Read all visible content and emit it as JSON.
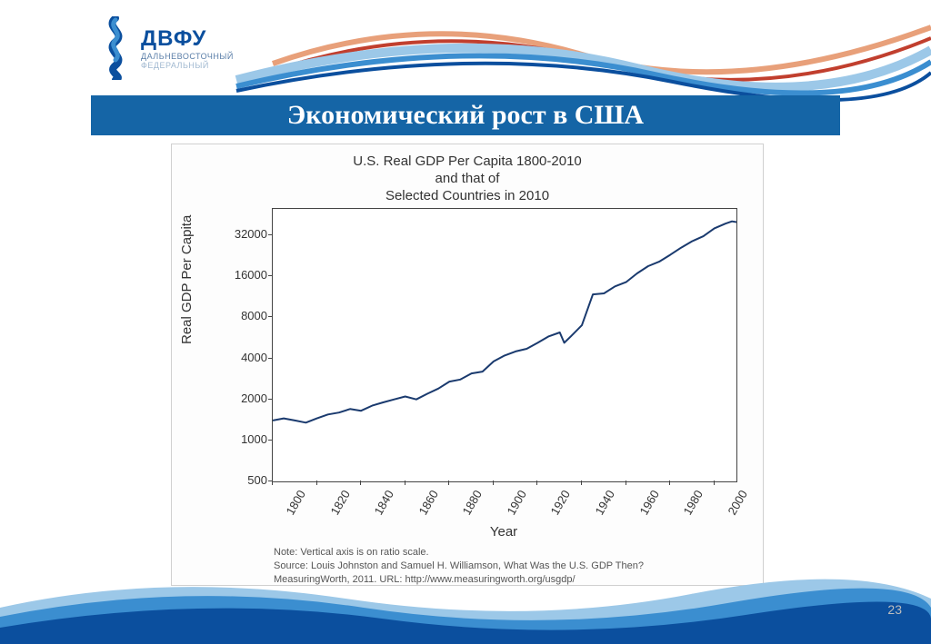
{
  "logo": {
    "main": "ДВФУ",
    "sub1": "Дальневосточный",
    "sub2": "Федеральный"
  },
  "title": "Экономический рост в США",
  "page_number": "23",
  "chart": {
    "type": "line",
    "title_line1": "U.S. Real GDP Per Capita 1800-2010",
    "title_line2": "and that of",
    "title_line3": "Selected Countries in 2010",
    "ylabel": "Real GDP Per Capita",
    "xlabel": "Year",
    "yscale": "log",
    "ylim": [
      500,
      50000
    ],
    "yticks": [
      500,
      1000,
      2000,
      4000,
      8000,
      16000,
      32000
    ],
    "xlim": [
      1800,
      2010
    ],
    "xticks": [
      1800,
      1820,
      1840,
      1860,
      1880,
      1900,
      1920,
      1940,
      1960,
      1980,
      2000
    ],
    "line_color": "#1a3a6e",
    "line_width": 2,
    "background_color": "#ffffff",
    "border_color": "#444444",
    "tick_fontsize": 13,
    "label_fontsize": 15,
    "title_fontsize": 15,
    "data": {
      "years": [
        1800,
        1805,
        1810,
        1815,
        1820,
        1825,
        1830,
        1835,
        1840,
        1845,
        1850,
        1855,
        1860,
        1865,
        1870,
        1875,
        1880,
        1885,
        1890,
        1895,
        1900,
        1905,
        1910,
        1915,
        1920,
        1925,
        1930,
        1932,
        1935,
        1940,
        1945,
        1950,
        1955,
        1960,
        1965,
        1970,
        1975,
        1980,
        1985,
        1990,
        1995,
        2000,
        2005,
        2008,
        2010
      ],
      "values": [
        1400,
        1450,
        1400,
        1350,
        1450,
        1550,
        1600,
        1700,
        1650,
        1800,
        1900,
        2000,
        2100,
        2000,
        2200,
        2400,
        2700,
        2800,
        3100,
        3200,
        3800,
        4200,
        4500,
        4700,
        5200,
        5800,
        6200,
        5200,
        5800,
        7000,
        11800,
        12000,
        13500,
        14500,
        16800,
        19000,
        20500,
        23000,
        26000,
        29000,
        31500,
        36000,
        39000,
        40500,
        40000
      ]
    },
    "note_line1": "Note: Vertical axis is on ratio scale.",
    "note_line2": "Source: Louis Johnston and Samuel H. Williamson, What Was the U.S. GDP Then?",
    "note_line3": "MeasuringWorth, 2011. URL: http://www.measuringworth.org/usgdp/"
  },
  "colors": {
    "title_bar_bg": "#1565a6",
    "title_text": "#ffffff",
    "logo_text": "#0b4f9e",
    "wave_blue_dark": "#0b4f9e",
    "wave_blue_mid": "#3b8ed0",
    "wave_blue_light": "#9cc8e8",
    "wave_red": "#c13f2e",
    "wave_orange": "#e8a07a"
  }
}
